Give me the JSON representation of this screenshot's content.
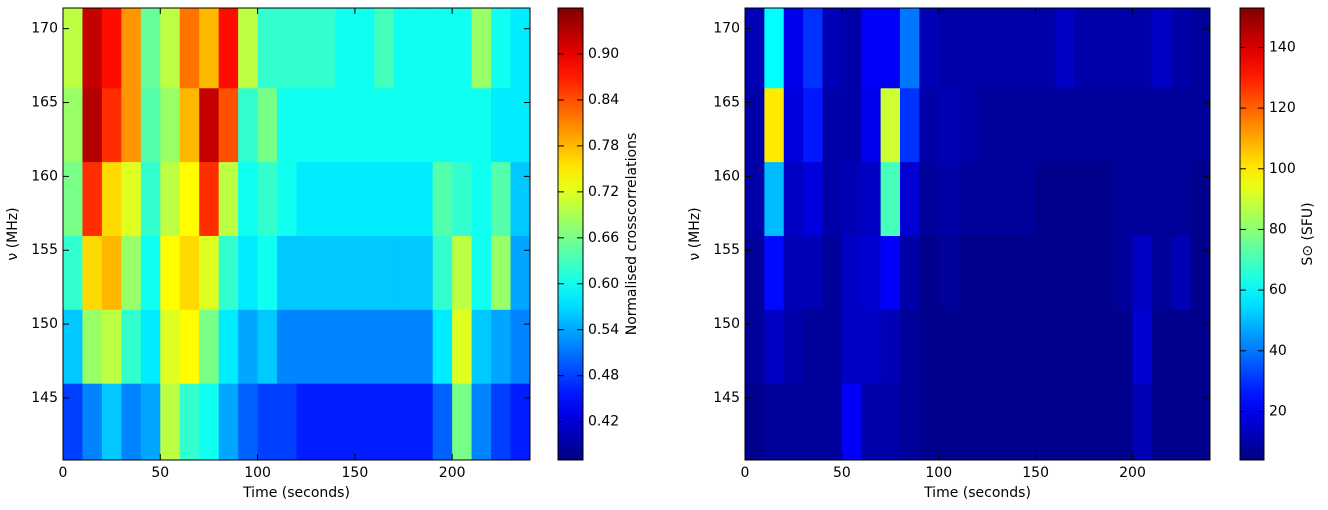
{
  "chart_data": [
    {
      "type": "heatmap",
      "xlabel": "Time (seconds)",
      "ylabel": "ν (MHz)",
      "x_bins": [
        0,
        10,
        20,
        30,
        40,
        50,
        60,
        70,
        80,
        90,
        100,
        110,
        120,
        130,
        140,
        150,
        160,
        170,
        180,
        190,
        200,
        210,
        220,
        230,
        240
      ],
      "y_bins": [
        140.8,
        146,
        151,
        156,
        161,
        166,
        171.4
      ],
      "xlim": [
        0,
        240
      ],
      "ylim": [
        140.8,
        171.4
      ],
      "xticks": [
        0,
        50,
        100,
        150,
        200
      ],
      "yticks": [
        145,
        150,
        155,
        160,
        165,
        170
      ],
      "values": [
        [
          0.48,
          0.52,
          0.56,
          0.52,
          0.54,
          0.7,
          0.62,
          0.6,
          0.54,
          0.5,
          0.48,
          0.48,
          0.46,
          0.46,
          0.46,
          0.46,
          0.46,
          0.46,
          0.46,
          0.5,
          0.66,
          0.52,
          0.48,
          0.46
        ],
        [
          0.56,
          0.68,
          0.7,
          0.62,
          0.58,
          0.72,
          0.74,
          0.66,
          0.58,
          0.54,
          0.56,
          0.52,
          0.52,
          0.52,
          0.52,
          0.52,
          0.52,
          0.52,
          0.52,
          0.58,
          0.72,
          0.56,
          0.54,
          0.52
        ],
        [
          0.62,
          0.76,
          0.78,
          0.68,
          0.6,
          0.74,
          0.76,
          0.72,
          0.62,
          0.58,
          0.6,
          0.56,
          0.56,
          0.56,
          0.56,
          0.56,
          0.56,
          0.56,
          0.56,
          0.62,
          0.7,
          0.6,
          0.68,
          0.54
        ],
        [
          0.66,
          0.86,
          0.76,
          0.72,
          0.62,
          0.7,
          0.74,
          0.86,
          0.7,
          0.6,
          0.62,
          0.6,
          0.58,
          0.58,
          0.58,
          0.58,
          0.58,
          0.58,
          0.58,
          0.64,
          0.62,
          0.6,
          0.64,
          0.56
        ],
        [
          0.68,
          0.93,
          0.86,
          0.8,
          0.64,
          0.68,
          0.78,
          0.92,
          0.84,
          0.62,
          0.66,
          0.6,
          0.6,
          0.6,
          0.6,
          0.6,
          0.6,
          0.6,
          0.6,
          0.6,
          0.6,
          0.6,
          0.58,
          0.58
        ],
        [
          0.7,
          0.92,
          0.88,
          0.8,
          0.65,
          0.7,
          0.82,
          0.78,
          0.88,
          0.7,
          0.62,
          0.62,
          0.62,
          0.62,
          0.6,
          0.6,
          0.63,
          0.6,
          0.6,
          0.6,
          0.6,
          0.68,
          0.6,
          0.58
        ]
      ],
      "colorbar": {
        "label": "Normalised crosscorrelations",
        "colormap": "jet",
        "lim": [
          0.37,
          0.96
        ],
        "ticks": [
          0.42,
          0.48,
          0.54,
          {
            "value": 0.6,
            "label": "0.60"
          },
          0.66,
          0.72,
          0.78,
          0.84,
          {
            "value": 0.9,
            "label": "0.90"
          }
        ]
      }
    },
    {
      "type": "heatmap",
      "xlabel": "Time (seconds)",
      "ylabel": "ν (MHz)",
      "x_bins": [
        0,
        10,
        20,
        30,
        40,
        50,
        60,
        70,
        80,
        90,
        100,
        110,
        120,
        130,
        140,
        150,
        160,
        170,
        180,
        190,
        200,
        210,
        220,
        230,
        240
      ],
      "y_bins": [
        140.8,
        146,
        151,
        156,
        161,
        166,
        171.4
      ],
      "xlim": [
        0,
        240
      ],
      "ylim": [
        140.8,
        171.4
      ],
      "xticks": [
        0,
        50,
        100,
        150,
        200
      ],
      "yticks": [
        145,
        150,
        155,
        160,
        165,
        170
      ],
      "values": [
        [
          6,
          8,
          8,
          8,
          8,
          22,
          10,
          10,
          8,
          6,
          6,
          6,
          6,
          6,
          6,
          6,
          6,
          6,
          6,
          6,
          12,
          6,
          6,
          6
        ],
        [
          8,
          14,
          10,
          8,
          8,
          14,
          14,
          12,
          8,
          6,
          6,
          6,
          6,
          6,
          6,
          6,
          6,
          6,
          6,
          6,
          16,
          6,
          6,
          6
        ],
        [
          8,
          24,
          12,
          12,
          8,
          14,
          16,
          22,
          10,
          6,
          8,
          6,
          6,
          6,
          6,
          6,
          6,
          6,
          6,
          8,
          14,
          8,
          12,
          6
        ],
        [
          10,
          50,
          14,
          18,
          10,
          12,
          14,
          70,
          16,
          8,
          10,
          8,
          8,
          8,
          8,
          6,
          6,
          6,
          6,
          8,
          8,
          8,
          8,
          6
        ],
        [
          10,
          100,
          18,
          26,
          10,
          10,
          20,
          90,
          30,
          10,
          12,
          10,
          8,
          8,
          8,
          8,
          8,
          8,
          8,
          8,
          8,
          8,
          8,
          8
        ],
        [
          12,
          60,
          20,
          30,
          12,
          10,
          22,
          22,
          40,
          12,
          10,
          10,
          10,
          10,
          10,
          10,
          14,
          10,
          10,
          10,
          10,
          14,
          10,
          8
        ]
      ],
      "colorbar": {
        "label": "S⊙ (SFU)",
        "colormap": "jet",
        "lim": [
          4,
          153
        ],
        "ticks": [
          20,
          40,
          60,
          80,
          100,
          120,
          140
        ]
      }
    }
  ]
}
